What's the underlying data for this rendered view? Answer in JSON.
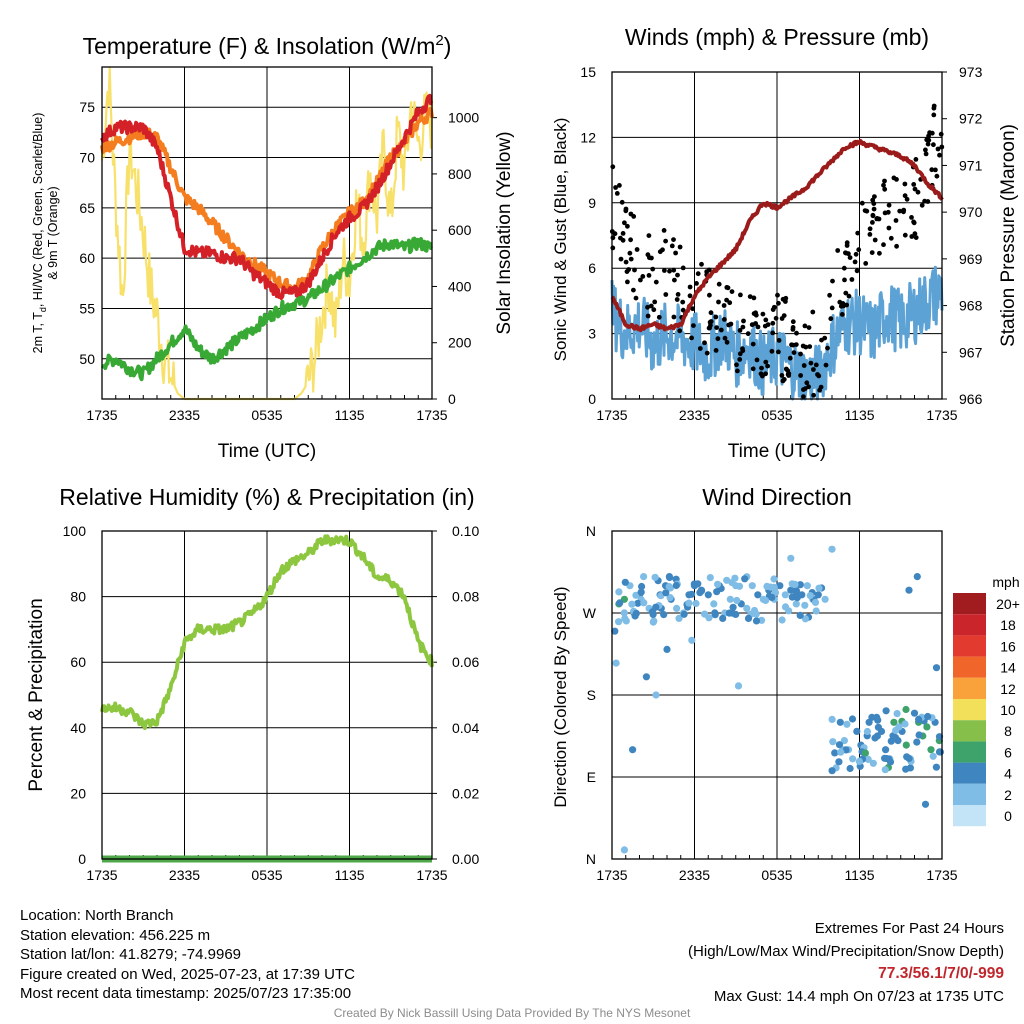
{
  "figure": {
    "credit": "Created By Nick Bassill Using Data Provided By The NYS Mesonet"
  },
  "footer": {
    "location": "Location: North Branch",
    "elevation": "Station elevation: 456.225 m",
    "latlon": "Station lat/lon: 41.8279; -74.9969",
    "created": "Figure created on Wed, 2025-07-23, at 17:39 UTC",
    "recent": "Most recent data timestamp: 2025/07/23 17:35:00",
    "extremes_title": "Extremes For Past 24 Hours",
    "extremes_sub": "(High/Low/Max Wind/Precipitation/Snow Depth)",
    "extremes_values": "77.3/56.1/7/0/-999",
    "max_gust": "Max Gust: 14.4 mph On 07/23 at 1735 UTC"
  },
  "colors": {
    "temp": "#d42027",
    "heat_index": "#c41f26",
    "dewpoint": "#39a935",
    "temp9m": "#f47d20",
    "solar": "#f8e16a",
    "wind": "#5da2d5",
    "gust": "#000000",
    "pressure": "#9b1b1b",
    "rh": "#8dc63f",
    "precip": "#4ea84a"
  },
  "chart_data": [
    {
      "type": "line",
      "title": "Temperature (F) & Insolation (W/m",
      "title_sup": "2",
      "title_end": ")",
      "xlabel": "Time (UTC)",
      "ylabel_line1": "2m T, T",
      "ylabel_sub": "d",
      "ylabel_line1b": ", HI/WC (Red, Green, Scarlet/Blue)",
      "ylabel_line2": "& 9m T (Orange)",
      "y2label": "Solar Insolation (Yellow)",
      "x_ticks": [
        "1735",
        "2335",
        "0535",
        "1135",
        "1735"
      ],
      "ylim": [
        46,
        79
      ],
      "y_ticks": [
        50,
        55,
        60,
        65,
        70,
        75
      ],
      "y2lim": [
        0,
        1180
      ],
      "y2_ticks": [
        0,
        200,
        400,
        600,
        800,
        1000
      ],
      "x_range_hours": [
        0,
        24
      ],
      "series": [
        {
          "key": "temp9m",
          "color": "#f47d20",
          "x": [
            0,
            1,
            2,
            3,
            4,
            5,
            6,
            7,
            8,
            9,
            10,
            11,
            12,
            13,
            14,
            15,
            16,
            17,
            18,
            19,
            20,
            21,
            22,
            23,
            24
          ],
          "values": [
            71,
            71.5,
            72,
            72.5,
            72,
            69,
            66,
            65,
            63.5,
            62,
            60.5,
            59.5,
            58.5,
            57.5,
            57,
            58,
            61,
            63,
            64.5,
            65.5,
            67.5,
            70,
            71.5,
            73.5,
            74.5
          ]
        },
        {
          "key": "temp",
          "color": "#d42027",
          "x": [
            0,
            1,
            2,
            3,
            4,
            5,
            6,
            7,
            8,
            9,
            10,
            11,
            12,
            13,
            14,
            15,
            16,
            17,
            18,
            19,
            20,
            21,
            22,
            23,
            24
          ],
          "values": [
            72,
            73,
            73,
            73,
            71,
            66,
            61,
            60.5,
            60.5,
            60,
            60,
            58.5,
            57.5,
            56.5,
            56.5,
            57.5,
            60,
            62.5,
            64,
            65,
            67,
            69.5,
            72,
            74.5,
            76
          ]
        },
        {
          "key": "dewpoint",
          "color": "#39a935",
          "x": [
            0,
            1,
            2,
            3,
            4,
            5,
            6,
            7,
            8,
            9,
            10,
            11,
            12,
            13,
            14,
            15,
            16,
            17,
            18,
            19,
            20,
            21,
            22,
            23,
            24
          ],
          "values": [
            49.5,
            50,
            49,
            48.5,
            50,
            51.5,
            53,
            51,
            50,
            51,
            52,
            53,
            54,
            55,
            55.5,
            56,
            57,
            58,
            59,
            60,
            61,
            61.5,
            61,
            61.5,
            61
          ]
        },
        {
          "key": "solar",
          "color": "#f8e16a",
          "axis": "y2",
          "x": [
            0,
            0.5,
            1,
            1.5,
            2,
            2.5,
            3,
            3.5,
            4,
            4.5,
            5,
            5.5,
            6,
            7,
            8,
            9,
            10,
            11,
            12,
            13,
            14,
            14.5,
            15,
            15.5,
            16,
            16.5,
            17,
            17.5,
            18,
            18.5,
            19,
            19.5,
            20,
            20.5,
            21,
            21.5,
            22,
            22.5,
            23,
            23.5,
            24
          ],
          "values": [
            850,
            1150,
            700,
            350,
            900,
            750,
            600,
            400,
            300,
            150,
            80,
            20,
            0,
            0,
            0,
            0,
            0,
            0,
            0,
            0,
            0,
            20,
            60,
            150,
            300,
            420,
            250,
            500,
            420,
            700,
            560,
            800,
            650,
            900,
            620,
            950,
            800,
            1050,
            900,
            1000,
            980
          ]
        }
      ]
    },
    {
      "type": "line",
      "title": "Winds (mph) & Pressure (mb)",
      "xlabel": "Time (UTC)",
      "ylabel": "Sonic Wind & Gust (Blue, Black)",
      "y2label": "Station Pressure (Maroon)",
      "x_ticks": [
        "1735",
        "2335",
        "0535",
        "1135",
        "1735"
      ],
      "ylim": [
        0,
        15
      ],
      "y_ticks": [
        0,
        3,
        6,
        9,
        12,
        15
      ],
      "y2lim": [
        966,
        973
      ],
      "y2_ticks": [
        966,
        967,
        968,
        969,
        970,
        971,
        972,
        973
      ],
      "series": [
        {
          "key": "wind",
          "color": "#5da2d5",
          "x": [
            0,
            1,
            2,
            3,
            4,
            5,
            6,
            7,
            8,
            9,
            10,
            11,
            12,
            13,
            14,
            15,
            16,
            17,
            18,
            19,
            20,
            21,
            22,
            23,
            24
          ],
          "values": [
            4,
            3,
            3.5,
            2.5,
            3,
            2.8,
            2.5,
            2,
            3,
            2,
            2.5,
            1.5,
            2,
            1.5,
            1,
            1,
            2.5,
            3.5,
            3.5,
            3,
            4,
            3.5,
            4,
            4.5,
            5
          ]
        },
        {
          "key": "gust",
          "color": "#000000",
          "x": [
            0,
            1,
            2,
            3,
            4,
            5,
            6,
            7,
            8,
            9,
            10,
            11,
            12,
            13,
            14,
            15,
            16,
            17,
            18,
            19,
            20,
            21,
            22,
            23,
            24
          ],
          "values": [
            9,
            7,
            6,
            5.5,
            6,
            5,
            4.5,
            4,
            3.5,
            3,
            3.5,
            3,
            3,
            2.5,
            2,
            2,
            4,
            6,
            7,
            8,
            9,
            8.5,
            9,
            10.5,
            13
          ]
        },
        {
          "key": "pressure",
          "color": "#9b1b1b",
          "axis": "y2",
          "x": [
            0,
            1,
            2,
            3,
            4,
            5,
            6,
            7,
            8,
            9,
            10,
            11,
            12,
            13,
            14,
            15,
            16,
            17,
            18,
            19,
            20,
            21,
            22,
            23,
            24
          ],
          "values": [
            968.2,
            967.6,
            967.5,
            967.6,
            967.5,
            967.6,
            968.2,
            968.6,
            968.9,
            969.2,
            969.8,
            970.2,
            970.1,
            970.3,
            970.5,
            970.8,
            971.1,
            971.4,
            971.5,
            971.4,
            971.3,
            971.2,
            971.0,
            970.6,
            970.3
          ]
        }
      ]
    },
    {
      "type": "line",
      "title": "Relative Humidity (%) & Precipitation (in)",
      "ylabel": "Percent & Precipitation",
      "x_ticks": [
        "1735",
        "2335",
        "0535",
        "1135",
        "1735"
      ],
      "ylim": [
        0,
        100
      ],
      "y_ticks": [
        0,
        20,
        40,
        60,
        80,
        100
      ],
      "y2lim": [
        0,
        0.1
      ],
      "y2_ticks": [
        "0.00",
        "0.02",
        "0.04",
        "0.06",
        "0.08",
        "0.10"
      ],
      "series": [
        {
          "key": "rh",
          "color": "#8dc63f",
          "x": [
            0,
            1,
            2,
            3,
            4,
            5,
            6,
            7,
            8,
            9,
            10,
            11,
            12,
            13,
            14,
            15,
            16,
            17,
            18,
            19,
            20,
            21,
            22,
            23,
            24
          ],
          "values": [
            46,
            46,
            45,
            41,
            42,
            52,
            66,
            70,
            70,
            70,
            72,
            75,
            80,
            88,
            91,
            93,
            97,
            97.5,
            97,
            92,
            86,
            85,
            80,
            66,
            60
          ]
        },
        {
          "key": "precip",
          "color": "#4ea84a",
          "x": [
            0,
            24
          ],
          "values": [
            0,
            0
          ]
        }
      ]
    },
    {
      "type": "scatter",
      "title": "Wind Direction",
      "ylabel": "Direction (Colored By Speed)",
      "x_ticks": [
        "1735",
        "2335",
        "0535",
        "1135",
        "1735"
      ],
      "y_ticks": [
        "N",
        "E",
        "S",
        "W",
        "N"
      ],
      "ylim": [
        0,
        360
      ],
      "legend": {
        "unit": "mph",
        "placement": "right",
        "labels": [
          "20+",
          "18",
          "16",
          "14",
          "12",
          "10",
          "8",
          "6",
          "4",
          "2",
          "0"
        ],
        "colors": [
          "#a01c1e",
          "#c9252b",
          "#e23a2e",
          "#f0652a",
          "#f9a23b",
          "#f3e05a",
          "#86c04a",
          "#3ea36a",
          "#3f86c0",
          "#7fbde6",
          "#c3e4f7"
        ]
      },
      "points": [
        [
          0.2,
          250,
          4
        ],
        [
          0.5,
          280,
          6
        ],
        [
          0.9,
          285,
          5
        ],
        [
          1.3,
          300,
          2
        ],
        [
          1.6,
          270,
          3
        ],
        [
          2,
          290,
          4
        ],
        [
          2.3,
          310,
          2
        ],
        [
          2.7,
          275,
          2
        ],
        [
          3,
          260,
          2
        ],
        [
          3.2,
          180,
          2
        ],
        [
          3.5,
          290,
          4
        ],
        [
          3.9,
          300,
          3
        ],
        [
          4.3,
          285,
          4
        ],
        [
          4.7,
          275,
          2
        ],
        [
          5.2,
          270,
          2
        ],
        [
          5.6,
          290,
          3
        ],
        [
          6,
          300,
          4
        ],
        [
          6.5,
          295,
          3
        ],
        [
          7,
          290,
          4
        ],
        [
          7.4,
          280,
          2
        ],
        [
          7.8,
          300,
          3
        ],
        [
          8.2,
          270,
          2
        ],
        [
          8.6,
          285,
          2
        ],
        [
          9,
          300,
          2
        ],
        [
          9.4,
          280,
          3
        ],
        [
          9.8,
          275,
          2
        ],
        [
          10.2,
          300,
          2
        ],
        [
          10.6,
          290,
          3
        ],
        [
          11,
          285,
          2
        ],
        [
          11.4,
          295,
          3
        ],
        [
          11.8,
          285,
          2
        ],
        [
          12.2,
          300,
          4
        ],
        [
          12.6,
          290,
          2
        ],
        [
          13,
          295,
          3
        ],
        [
          13.4,
          280,
          2
        ],
        [
          13.8,
          290,
          3
        ],
        [
          14.2,
          300,
          2
        ],
        [
          14.6,
          285,
          2
        ],
        [
          15,
          290,
          3
        ],
        [
          15.5,
          285,
          2
        ],
        [
          16,
          340,
          1
        ],
        [
          16.3,
          100,
          2
        ],
        [
          16.6,
          150,
          3
        ],
        [
          16.9,
          130,
          2
        ],
        [
          17.2,
          120,
          2
        ],
        [
          17.5,
          110,
          2
        ],
        [
          17.8,
          140,
          4
        ],
        [
          18.1,
          125,
          3
        ],
        [
          18.4,
          115,
          2
        ],
        [
          18.7,
          150,
          4
        ],
        [
          19,
          105,
          2
        ],
        [
          19.3,
          135,
          4
        ],
        [
          19.6,
          140,
          3
        ],
        [
          19.9,
          120,
          3
        ],
        [
          20.2,
          110,
          2
        ],
        [
          20.5,
          150,
          5
        ],
        [
          20.8,
          130,
          3
        ],
        [
          21.1,
          140,
          4
        ],
        [
          21.4,
          125,
          5
        ],
        [
          21.7,
          100,
          4
        ],
        [
          22,
          160,
          3
        ],
        [
          22.3,
          150,
          6
        ],
        [
          22.6,
          135,
          5
        ],
        [
          22.9,
          145,
          6
        ],
        [
          23.2,
          120,
          5
        ],
        [
          23.5,
          150,
          4
        ],
        [
          23.8,
          130,
          6
        ],
        [
          21.6,
          295,
          3
        ],
        [
          22.2,
          310,
          4
        ],
        [
          22.8,
          60,
          3
        ],
        [
          23.6,
          210,
          4
        ],
        [
          0.3,
          215,
          2
        ],
        [
          0.9,
          10,
          2
        ],
        [
          1.5,
          120,
          3
        ],
        [
          2.5,
          200,
          3
        ],
        [
          4,
          230,
          3
        ],
        [
          5.8,
          240,
          2
        ],
        [
          9.2,
          190,
          2
        ],
        [
          13,
          330,
          2
        ],
        [
          16.8,
          120,
          1
        ]
      ]
    }
  ]
}
